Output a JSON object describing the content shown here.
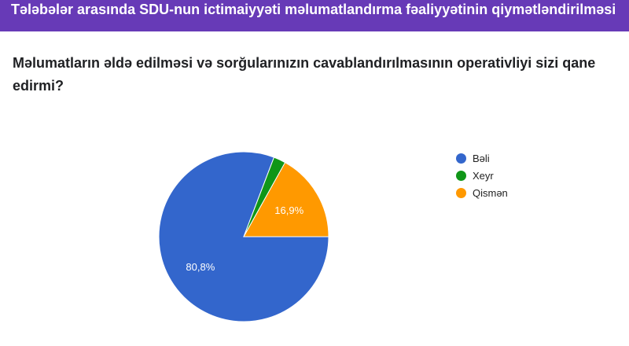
{
  "header": {
    "title": "Tələbələr arasında SDU-nun ictimaiyyəti məlumatlandırma fəaliyyətinin qiymətləndirilməsi"
  },
  "question": "Məlumatların əldə edilməsi və sorğularınızın cavablandırılmasının operativliyi sizi qane edirmi?",
  "chart_data": {
    "type": "pie",
    "categories": [
      "Bəli",
      "Xeyr",
      "Qismən"
    ],
    "values": [
      80.8,
      2.3,
      16.9
    ],
    "labels": [
      "80,8%",
      "",
      "16,9%"
    ],
    "colors": [
      "#3366cc",
      "#109618",
      "#ff9900"
    ],
    "legend": "right"
  }
}
